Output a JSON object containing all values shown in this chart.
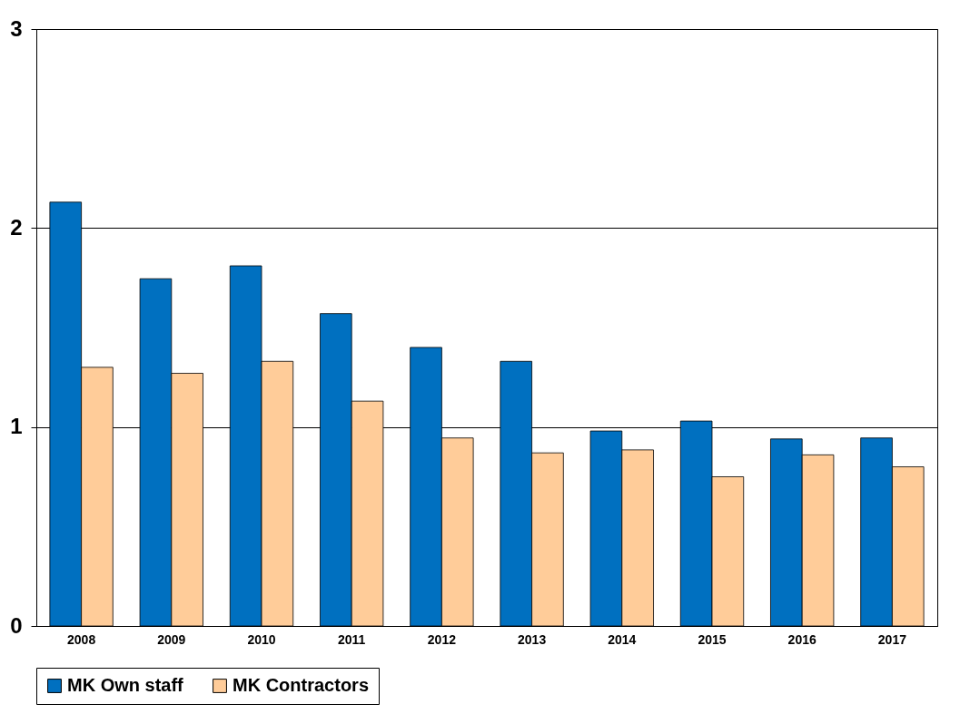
{
  "chart_data": {
    "type": "bar",
    "categories": [
      "2008",
      "2009",
      "2010",
      "2011",
      "2012",
      "2013",
      "2014",
      "2015",
      "2016",
      "2017"
    ],
    "series": [
      {
        "name": "MK Own staff",
        "color": "#0070c0",
        "values": [
          2.13,
          1.745,
          1.81,
          1.57,
          1.4,
          1.33,
          0.98,
          1.03,
          0.94,
          0.945
        ]
      },
      {
        "name": "MK Contractors",
        "color": "#ffcc99",
        "values": [
          1.3,
          1.27,
          1.33,
          1.13,
          0.945,
          0.87,
          0.885,
          0.75,
          0.86,
          0.8
        ]
      }
    ],
    "ylim": [
      0,
      3
    ],
    "yticks": [
      0,
      1,
      2,
      3
    ],
    "grid": "y",
    "legend": "bottom"
  }
}
